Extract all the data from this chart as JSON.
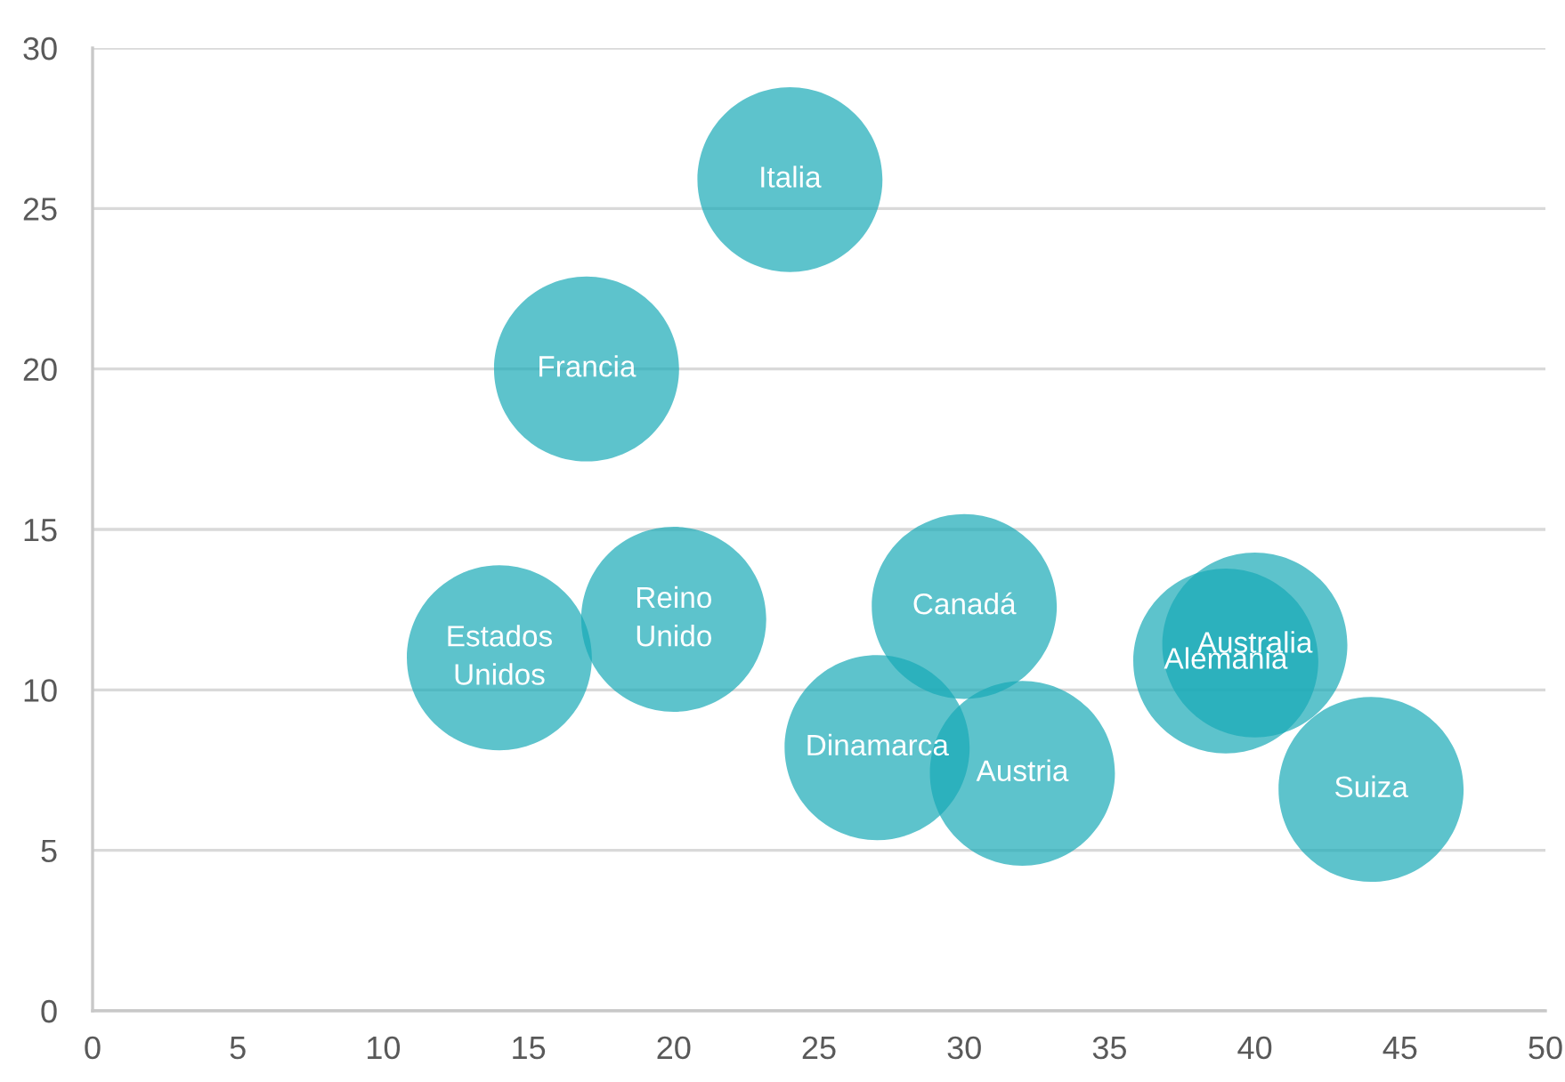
{
  "chart_data": {
    "type": "bubble",
    "series": [
      {
        "name": "Alemania",
        "color": "#18a9b6",
        "x": [
          39
        ],
        "values": [
          10.9
        ],
        "sizes": [
          1
        ]
      },
      {
        "name": "Australia",
        "color": "#18a9b6",
        "x": [
          40
        ],
        "values": [
          11.4
        ],
        "sizes": [
          1
        ]
      },
      {
        "name": "Austria",
        "color": "#18a9b6",
        "x": [
          32
        ],
        "values": [
          7.4
        ],
        "sizes": [
          1
        ]
      },
      {
        "name": "Canadá",
        "color": "#18a9b6",
        "x": [
          30
        ],
        "values": [
          12.6
        ],
        "sizes": [
          1
        ]
      },
      {
        "name": "Dinamarca",
        "color": "#18a9b6",
        "x": [
          27
        ],
        "values": [
          8.2
        ],
        "sizes": [
          1
        ]
      },
      {
        "name": "Estados\nUnidos",
        "color": "#18a9b6",
        "x": [
          14
        ],
        "values": [
          11.0
        ],
        "sizes": [
          1
        ]
      },
      {
        "name": "Francia",
        "color": "#18a9b6",
        "x": [
          17
        ],
        "values": [
          20.0
        ],
        "sizes": [
          1
        ]
      },
      {
        "name": "Italia",
        "color": "#18a9b6",
        "x": [
          24
        ],
        "values": [
          25.9
        ],
        "sizes": [
          1
        ]
      },
      {
        "name": "Reino\nUnido",
        "color": "#18a9b6",
        "x": [
          20
        ],
        "values": [
          12.2
        ],
        "sizes": [
          1
        ]
      },
      {
        "name": "Suiza",
        "color": "#18a9b6",
        "x": [
          44
        ],
        "values": [
          6.9
        ],
        "sizes": [
          1
        ]
      }
    ],
    "xlim": [
      0,
      50
    ],
    "xticks": [
      0,
      5,
      10,
      15,
      20,
      25,
      30,
      35,
      40,
      45,
      50
    ],
    "ylim": [
      0,
      30
    ],
    "yticks": [
      0,
      5,
      10,
      15,
      20,
      25,
      30
    ],
    "grid": "y"
  }
}
